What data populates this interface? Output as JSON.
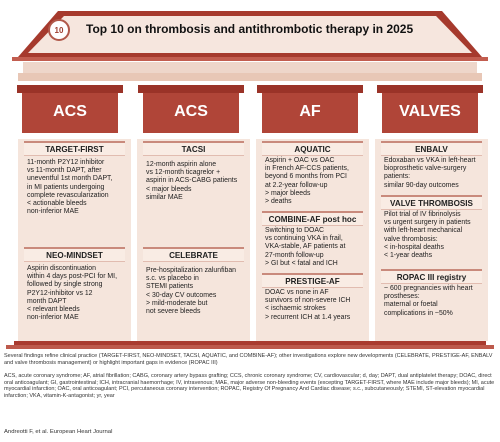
{
  "title": "Top 10 on thrombosis and antithrombotic therapy in 2025",
  "logo_number": "10",
  "colors": {
    "column_dark": "#9e3f31",
    "column_mid": "#c45c4e",
    "panel": "#f5e5dc",
    "accent": "#c98a7c"
  },
  "columns": [
    {
      "header": "ACS",
      "sections": [
        {
          "title": "TARGET-FIRST",
          "lines": [
            "11-month P2Y12 inhibitor",
            "vs 11-month DAPT, after",
            "uneventful 1st month DAPT,",
            "in MI patients undergoing",
            "complete revascularization"
          ],
          "outcomes": [
            "< actionable bleeds",
            "non-inferior MAE"
          ]
        },
        {
          "title": "NEO-MINDSET",
          "lines": [
            "Aspirin discontinuation",
            "within 4 days post-PCI for MI,",
            "followed by single strong",
            "P2Y12-inhibitor vs 12",
            "month DAPT"
          ],
          "outcomes": [
            "< relevant bleeds",
            "non-inferior MAE"
          ]
        }
      ]
    },
    {
      "header": "ACS",
      "sections": [
        {
          "title": "TACSI",
          "lines": [
            "12-month aspirin alone",
            "vs 12-month ticagrelor +",
            "aspirin in ACS-CABG patients"
          ],
          "outcomes": [
            "< major bleeds",
            "similar MAE"
          ]
        },
        {
          "title": "CELEBRATE",
          "lines": [
            "Pre-hospitalization zalunfiban",
            "s.c. vs placebo in",
            "STEMI patients"
          ],
          "outcomes": [
            "< 30-day CV outcomes",
            "> mild-moderate but",
            "not severe bleeds"
          ]
        }
      ]
    },
    {
      "header": "AF",
      "sections": [
        {
          "title": "AQUATIC",
          "lines": [
            "Aspirin + OAC vs OAC",
            "in French AF-CCS patients,",
            "beyond 6 months from PCI",
            "at 2.2-year follow-up"
          ],
          "outcomes": [
            "> major bleeds",
            "> deaths"
          ]
        },
        {
          "title": "COMBINE-AF post hoc",
          "lines": [
            "Switching to DOAC",
            "vs continuing VKA in frail,",
            "VKA-stable, AF patients at",
            "27-month follow-up"
          ],
          "outcomes": [
            "> GI but < fatal and ICH"
          ]
        },
        {
          "title": "PRESTIGE-AF",
          "lines": [
            "DOAC vs none in AF",
            "survivors of non-severe ICH"
          ],
          "outcomes": [
            "< ischaemic strokes",
            "> recurrent ICH at 1.4 years"
          ]
        }
      ]
    },
    {
      "header": "VALVES",
      "sections": [
        {
          "title": "ENBALV",
          "lines": [
            "Edoxaban vs VKA in left-heart",
            "bioprosthetic valve-surgery",
            "patients:"
          ],
          "outcomes": [
            "similar 90-day outcomes"
          ]
        },
        {
          "title": "VALVE THROMBOSIS",
          "lines": [
            "Pilot trial of IV fibrinolysis",
            "vs urgent surgery in patients",
            "with left-heart mechanical",
            "valve thrombosis:"
          ],
          "outcomes": [
            "< in-hospital deaths",
            "< 1-year deaths"
          ]
        },
        {
          "title": "ROPAC III registry",
          "lines": [
            "~ 600 pregnancies with heart",
            "prostheses:"
          ],
          "outcomes": [
            "maternal or foetal",
            "complications in ~50%"
          ]
        }
      ]
    }
  ],
  "summary": "Several findings refine clinical practice (TARGET-FIRST, NEO-MINDSET, TACSI, AQUATIC, and COMBINE-AF); other investigations explore new developments (CELEBRATE, PRESTIGE-AF, ENBALV and valve thrombosis management) or highlight important gaps in evidence (ROPAC III)",
  "abbreviations": "ACS, acute coronary syndrome; AF, atrial fibrillation; CABG, coronary artery bypass grafting; CCS, chronic coronary syndrome; CV, cardiovascular; d, day; DAPT, dual antiplatelet therapy; DOAC, direct oral anticoagulant; GI, gastrointestinal; ICH, intracranial haemorrhage; IV, intravenous; MAE, major adverse non-bleeding events (excepting TARGET-FIRST, where MAE include major bleeds); MI, acute myocardial infarction; OAC, oral anticoagulant; PCI, percutaneous coronary intervention; ROPAC, Registry Of Pregnancy And Cardiac disease; s.c., subcutaneously; STEMI, ST-elevation myocardial infarction; VKA, vitamin-K-antagonist; yr, year",
  "credit": "Andreotti F, et al. European Heart Journal"
}
